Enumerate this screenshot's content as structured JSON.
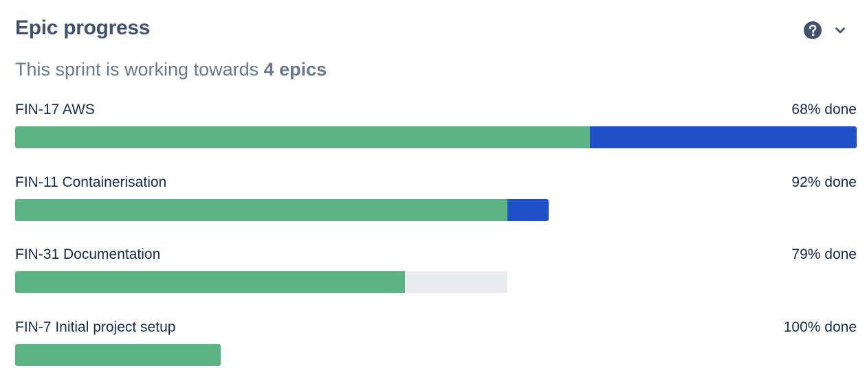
{
  "header": {
    "title": "Epic progress",
    "help_icon": "question-circle-icon",
    "collapse_icon": "chevron-down-icon"
  },
  "summary": {
    "prefix": "This sprint is working towards ",
    "count_text": "4 epics"
  },
  "colors": {
    "done": "#5BB283",
    "in_progress": "#2050C8",
    "todo": "#EBECF0",
    "title": "#42526E",
    "subtitle": "#6B778C",
    "text": "#172B4D"
  },
  "epics": [
    {
      "label": "FIN-17 AWS",
      "done_text": "68% done",
      "bar_scale": 1.0,
      "done_fraction": 0.683,
      "in_progress_fraction": 0.317,
      "todo_fraction": 0.0
    },
    {
      "label": "FIN-11 Containerisation",
      "done_text": "92% done",
      "bar_scale": 0.634,
      "done_fraction": 0.923,
      "in_progress_fraction": 0.077,
      "todo_fraction": 0.0
    },
    {
      "label": "FIN-31 Documentation",
      "done_text": "79% done",
      "bar_scale": 0.585,
      "done_fraction": 0.792,
      "in_progress_fraction": 0.0,
      "todo_fraction": 0.208
    },
    {
      "label": "FIN-7 Initial project setup",
      "done_text": "100% done",
      "bar_scale": 0.244,
      "done_fraction": 1.0,
      "in_progress_fraction": 0.0,
      "todo_fraction": 0.0
    }
  ]
}
